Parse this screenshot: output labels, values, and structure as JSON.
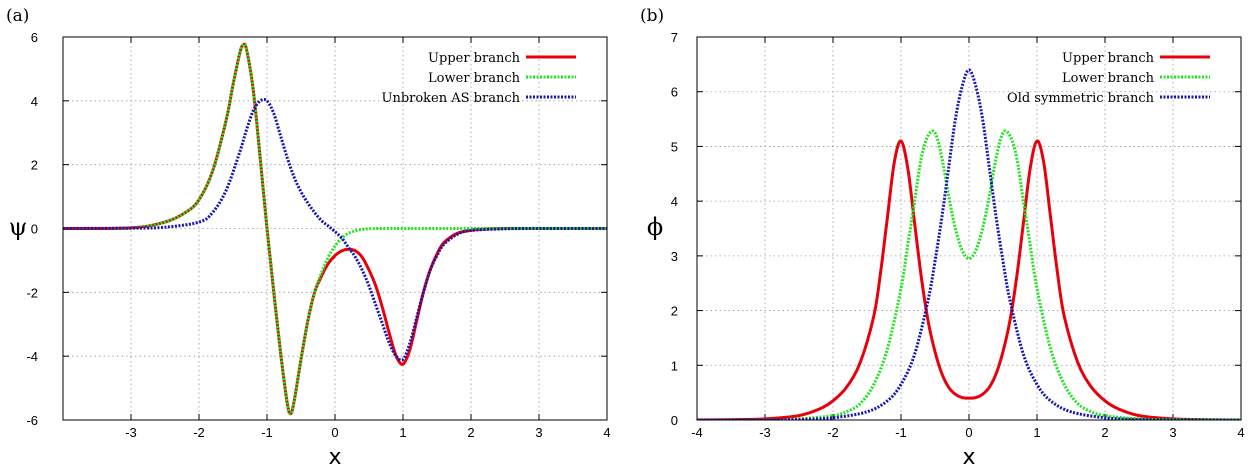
{
  "chart_data": [
    {
      "panel": "(a)",
      "type": "line",
      "xlabel": "x",
      "ylabel": "ψ",
      "xlim": [
        -4,
        4
      ],
      "ylim": [
        -6,
        6
      ],
      "xticks": [
        -3,
        -2,
        -1,
        0,
        1,
        2,
        3,
        4
      ],
      "xtick_labels": [
        "-3",
        "-2",
        "-1",
        "0",
        "1",
        "2",
        "3",
        "4"
      ],
      "yticks": [
        -6,
        -4,
        -2,
        0,
        2,
        4,
        6
      ],
      "ytick_labels": [
        "-6",
        "-4",
        "-2",
        "0",
        "2",
        "4",
        "6"
      ],
      "grid": true,
      "legend_position": "top-right",
      "series": [
        {
          "name": "Upper  branch",
          "color": "#e8000b",
          "style": "solid",
          "x": [
            -4,
            -3,
            -2.5,
            -2.2,
            -2,
            -1.8,
            -1.6,
            -1.5,
            -1.4,
            -1.35,
            -1.3,
            -1.2,
            -1.1,
            -1.0,
            -0.9,
            -0.8,
            -0.7,
            -0.65,
            -0.6,
            -0.5,
            -0.4,
            -0.3,
            -0.2,
            -0.1,
            0,
            0.1,
            0.2,
            0.3,
            0.4,
            0.5,
            0.6,
            0.7,
            0.8,
            0.9,
            1.0,
            1.1,
            1.2,
            1.3,
            1.4,
            1.5,
            1.6,
            1.8,
            2.0,
            2.2,
            2.5,
            3,
            4
          ],
          "y": [
            0,
            0.02,
            0.2,
            0.5,
            0.9,
            1.8,
            3.4,
            4.5,
            5.5,
            5.75,
            5.6,
            4.3,
            2.2,
            0,
            -2.0,
            -3.9,
            -5.5,
            -5.8,
            -5.4,
            -4.1,
            -2.9,
            -2.0,
            -1.5,
            -1.1,
            -0.85,
            -0.7,
            -0.65,
            -0.7,
            -0.9,
            -1.3,
            -1.8,
            -2.5,
            -3.3,
            -4.0,
            -4.25,
            -3.8,
            -2.9,
            -2.0,
            -1.3,
            -0.8,
            -0.45,
            -0.15,
            -0.06,
            -0.02,
            0,
            0,
            0
          ]
        },
        {
          "name": "Lower  branch",
          "color": "#1ee61e",
          "style": "dotted",
          "x": [
            -4,
            -3,
            -2.5,
            -2.2,
            -2,
            -1.8,
            -1.6,
            -1.5,
            -1.4,
            -1.35,
            -1.3,
            -1.2,
            -1.1,
            -1.0,
            -0.9,
            -0.8,
            -0.7,
            -0.65,
            -0.6,
            -0.5,
            -0.4,
            -0.3,
            -0.2,
            -0.1,
            0,
            0.1,
            0.2,
            0.3,
            0.4,
            0.5,
            0.6,
            0.8,
            1.0,
            1.5,
            2.0,
            3,
            4
          ],
          "y": [
            0,
            0.02,
            0.2,
            0.5,
            0.9,
            1.8,
            3.4,
            4.5,
            5.5,
            5.75,
            5.6,
            4.3,
            2.2,
            0,
            -2.0,
            -3.9,
            -5.5,
            -5.8,
            -5.4,
            -4.1,
            -2.9,
            -2.0,
            -1.4,
            -0.9,
            -0.55,
            -0.3,
            -0.15,
            -0.07,
            -0.03,
            -0.01,
            0,
            0,
            0,
            0,
            0,
            0,
            0
          ]
        },
        {
          "name": "Unbroken AS branch",
          "color": "#1515b4",
          "style": "dotted",
          "x": [
            -4,
            -3,
            -2.5,
            -2,
            -1.8,
            -1.6,
            -1.4,
            -1.3,
            -1.2,
            -1.1,
            -1.0,
            -0.9,
            -0.8,
            -0.7,
            -0.6,
            -0.5,
            -0.4,
            -0.3,
            -0.2,
            -0.1,
            0,
            0.1,
            0.2,
            0.3,
            0.4,
            0.5,
            0.6,
            0.7,
            0.8,
            0.9,
            1.0,
            1.1,
            1.2,
            1.3,
            1.4,
            1.5,
            1.6,
            1.8,
            2.0,
            2.5,
            3,
            4
          ],
          "y": [
            0,
            0.01,
            0.04,
            0.2,
            0.5,
            1.2,
            2.4,
            3.1,
            3.7,
            4.0,
            4.0,
            3.6,
            2.9,
            2.2,
            1.6,
            1.15,
            0.8,
            0.5,
            0.25,
            0.08,
            -0.1,
            -0.3,
            -0.6,
            -0.9,
            -1.3,
            -1.8,
            -2.4,
            -3.0,
            -3.6,
            -4.0,
            -4.1,
            -3.6,
            -2.8,
            -2.0,
            -1.3,
            -0.85,
            -0.5,
            -0.18,
            -0.06,
            -0.01,
            0,
            0
          ]
        }
      ]
    },
    {
      "panel": "(b)",
      "type": "line",
      "xlabel": "x",
      "ylabel": "ϕ",
      "xlim": [
        -4,
        4
      ],
      "ylim": [
        0,
        7
      ],
      "xticks": [
        -4,
        -3,
        -2,
        -1,
        0,
        1,
        2,
        3,
        4
      ],
      "xtick_labels": [
        "-4",
        "-3",
        "-2",
        "-1",
        "0",
        "1",
        "2",
        "3",
        "4"
      ],
      "yticks": [
        0,
        1,
        2,
        3,
        4,
        5,
        6,
        7
      ],
      "ytick_labels": [
        "0",
        "1",
        "2",
        "3",
        "4",
        "5",
        "6",
        "7"
      ],
      "grid": true,
      "legend_position": "top-right",
      "series": [
        {
          "name": "Upper  branch",
          "color": "#e8000b",
          "style": "solid",
          "x": [
            -4,
            -3.5,
            -3,
            -2.5,
            -2.2,
            -2,
            -1.8,
            -1.6,
            -1.4,
            -1.3,
            -1.2,
            -1.1,
            -1.0,
            -0.9,
            -0.8,
            -0.7,
            -0.6,
            -0.5,
            -0.4,
            -0.3,
            -0.2,
            -0.1,
            0,
            0.1,
            0.2,
            0.3,
            0.4,
            0.5,
            0.6,
            0.7,
            0.8,
            0.9,
            1.0,
            1.1,
            1.2,
            1.3,
            1.4,
            1.6,
            1.8,
            2.0,
            2.2,
            2.5,
            3,
            3.5,
            4
          ],
          "y": [
            0,
            0.005,
            0.02,
            0.08,
            0.2,
            0.35,
            0.6,
            1.05,
            1.9,
            2.7,
            3.7,
            4.7,
            5.1,
            4.6,
            3.6,
            2.6,
            1.8,
            1.25,
            0.85,
            0.6,
            0.47,
            0.41,
            0.4,
            0.41,
            0.47,
            0.6,
            0.85,
            1.25,
            1.8,
            2.6,
            3.6,
            4.6,
            5.1,
            4.7,
            3.7,
            2.7,
            1.9,
            1.05,
            0.6,
            0.35,
            0.2,
            0.08,
            0.02,
            0.005,
            0
          ]
        },
        {
          "name": "Lower  branch",
          "color": "#1ee61e",
          "style": "dotted",
          "x": [
            -4,
            -3,
            -2.5,
            -2,
            -1.8,
            -1.6,
            -1.4,
            -1.2,
            -1.0,
            -0.9,
            -0.8,
            -0.7,
            -0.6,
            -0.5,
            -0.4,
            -0.3,
            -0.2,
            -0.1,
            0,
            0.1,
            0.2,
            0.3,
            0.4,
            0.5,
            0.6,
            0.7,
            0.8,
            0.9,
            1.0,
            1.2,
            1.4,
            1.6,
            1.8,
            2.0,
            2.5,
            3,
            4
          ],
          "y": [
            0,
            0.005,
            0.02,
            0.08,
            0.15,
            0.3,
            0.65,
            1.3,
            2.4,
            3.2,
            4.0,
            4.8,
            5.2,
            5.25,
            4.8,
            4.1,
            3.5,
            3.1,
            2.95,
            3.1,
            3.5,
            4.1,
            4.8,
            5.25,
            5.2,
            4.8,
            4.0,
            3.2,
            2.4,
            1.3,
            0.65,
            0.3,
            0.15,
            0.08,
            0.02,
            0.005,
            0
          ]
        },
        {
          "name": "Old symmetric branch",
          "color": "#1515b4",
          "style": "dotted",
          "x": [
            -4,
            -3,
            -2.5,
            -2,
            -1.5,
            -1.2,
            -1.0,
            -0.8,
            -0.6,
            -0.5,
            -0.4,
            -0.3,
            -0.2,
            -0.1,
            0,
            0.1,
            0.2,
            0.3,
            0.4,
            0.5,
            0.6,
            0.8,
            1.0,
            1.2,
            1.5,
            2.0,
            2.5,
            3,
            4
          ],
          "y": [
            0,
            0.003,
            0.01,
            0.04,
            0.15,
            0.35,
            0.65,
            1.2,
            2.2,
            2.9,
            3.7,
            4.6,
            5.5,
            6.1,
            6.4,
            6.1,
            5.5,
            4.6,
            3.7,
            2.9,
            2.2,
            1.2,
            0.65,
            0.35,
            0.15,
            0.04,
            0.01,
            0.003,
            0
          ]
        }
      ]
    }
  ]
}
